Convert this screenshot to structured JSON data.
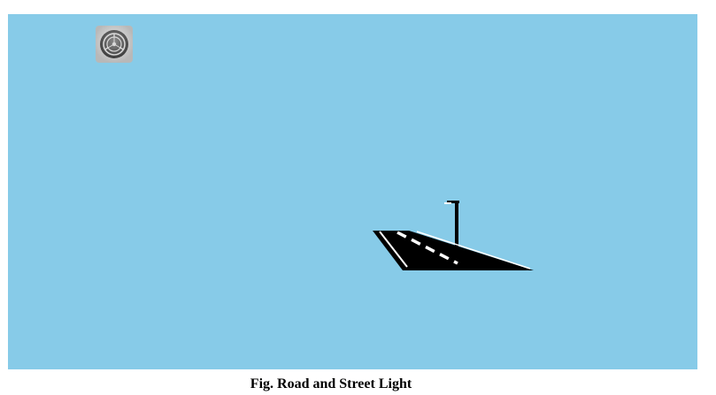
{
  "colors": {
    "sky": "#87CBE8",
    "road": "#000000",
    "lane_marking": "#FFFFFF",
    "icon_bg": "#C9C9C9",
    "icon_ring": "#5A5A5A"
  },
  "toolbar": {
    "settings_icon": "gear-icon"
  },
  "caption": {
    "text": "Fig. Road and Street Light"
  }
}
